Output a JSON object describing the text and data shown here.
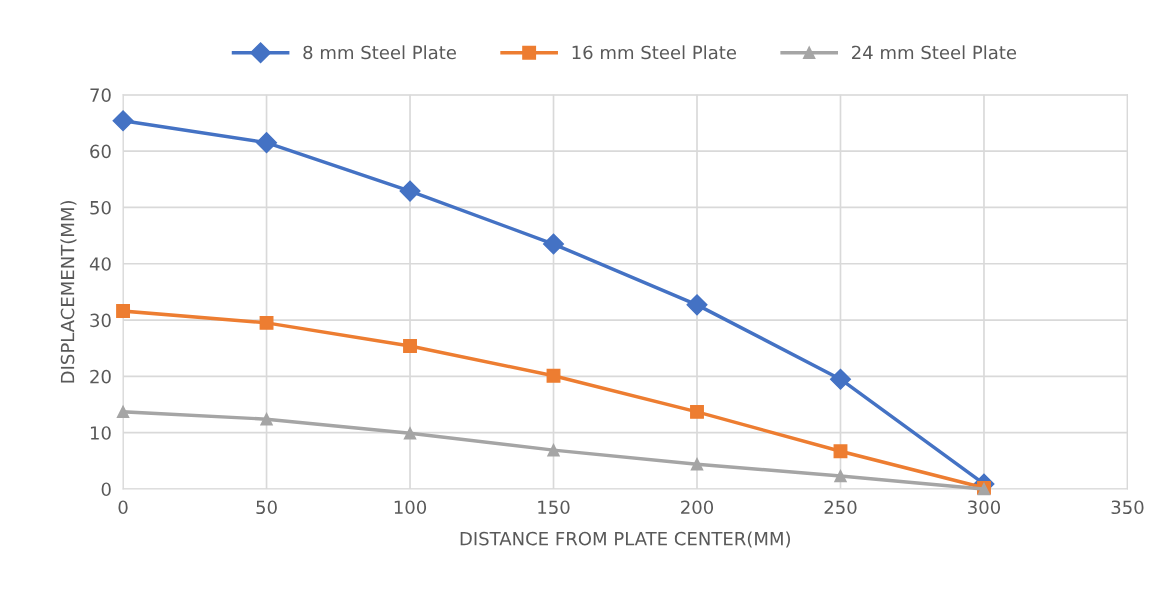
{
  "chart_data": {
    "type": "line",
    "xlabel": "DISTANCE FROM PLATE CENTER(MM)",
    "ylabel": "DISPLACEMENT(MM)",
    "x": [
      0,
      50,
      100,
      150,
      200,
      250,
      300
    ],
    "series": [
      {
        "name": "8 mm Steel Plate",
        "color": "#4472c4",
        "marker": "diamond",
        "values": [
          65.4,
          61.5,
          52.9,
          43.5,
          32.7,
          19.5,
          0.9
        ]
      },
      {
        "name": "16 mm Steel Plate",
        "color": "#ed7d31",
        "marker": "square",
        "values": [
          31.6,
          29.5,
          25.4,
          20.1,
          13.7,
          6.7,
          0.2
        ]
      },
      {
        "name": "24 mm Steel Plate",
        "color": "#a5a5a5",
        "marker": "triangle",
        "values": [
          13.7,
          12.4,
          9.9,
          6.9,
          4.4,
          2.3,
          0
        ]
      }
    ],
    "xlim": [
      0,
      350
    ],
    "xticks": [
      0,
      50,
      100,
      150,
      200,
      250,
      300,
      350
    ],
    "ylim": [
      0,
      70
    ],
    "yticks": [
      0,
      10,
      20,
      30,
      40,
      50,
      60,
      70
    ],
    "grid": true,
    "legend": "top",
    "line_style": "solid"
  }
}
